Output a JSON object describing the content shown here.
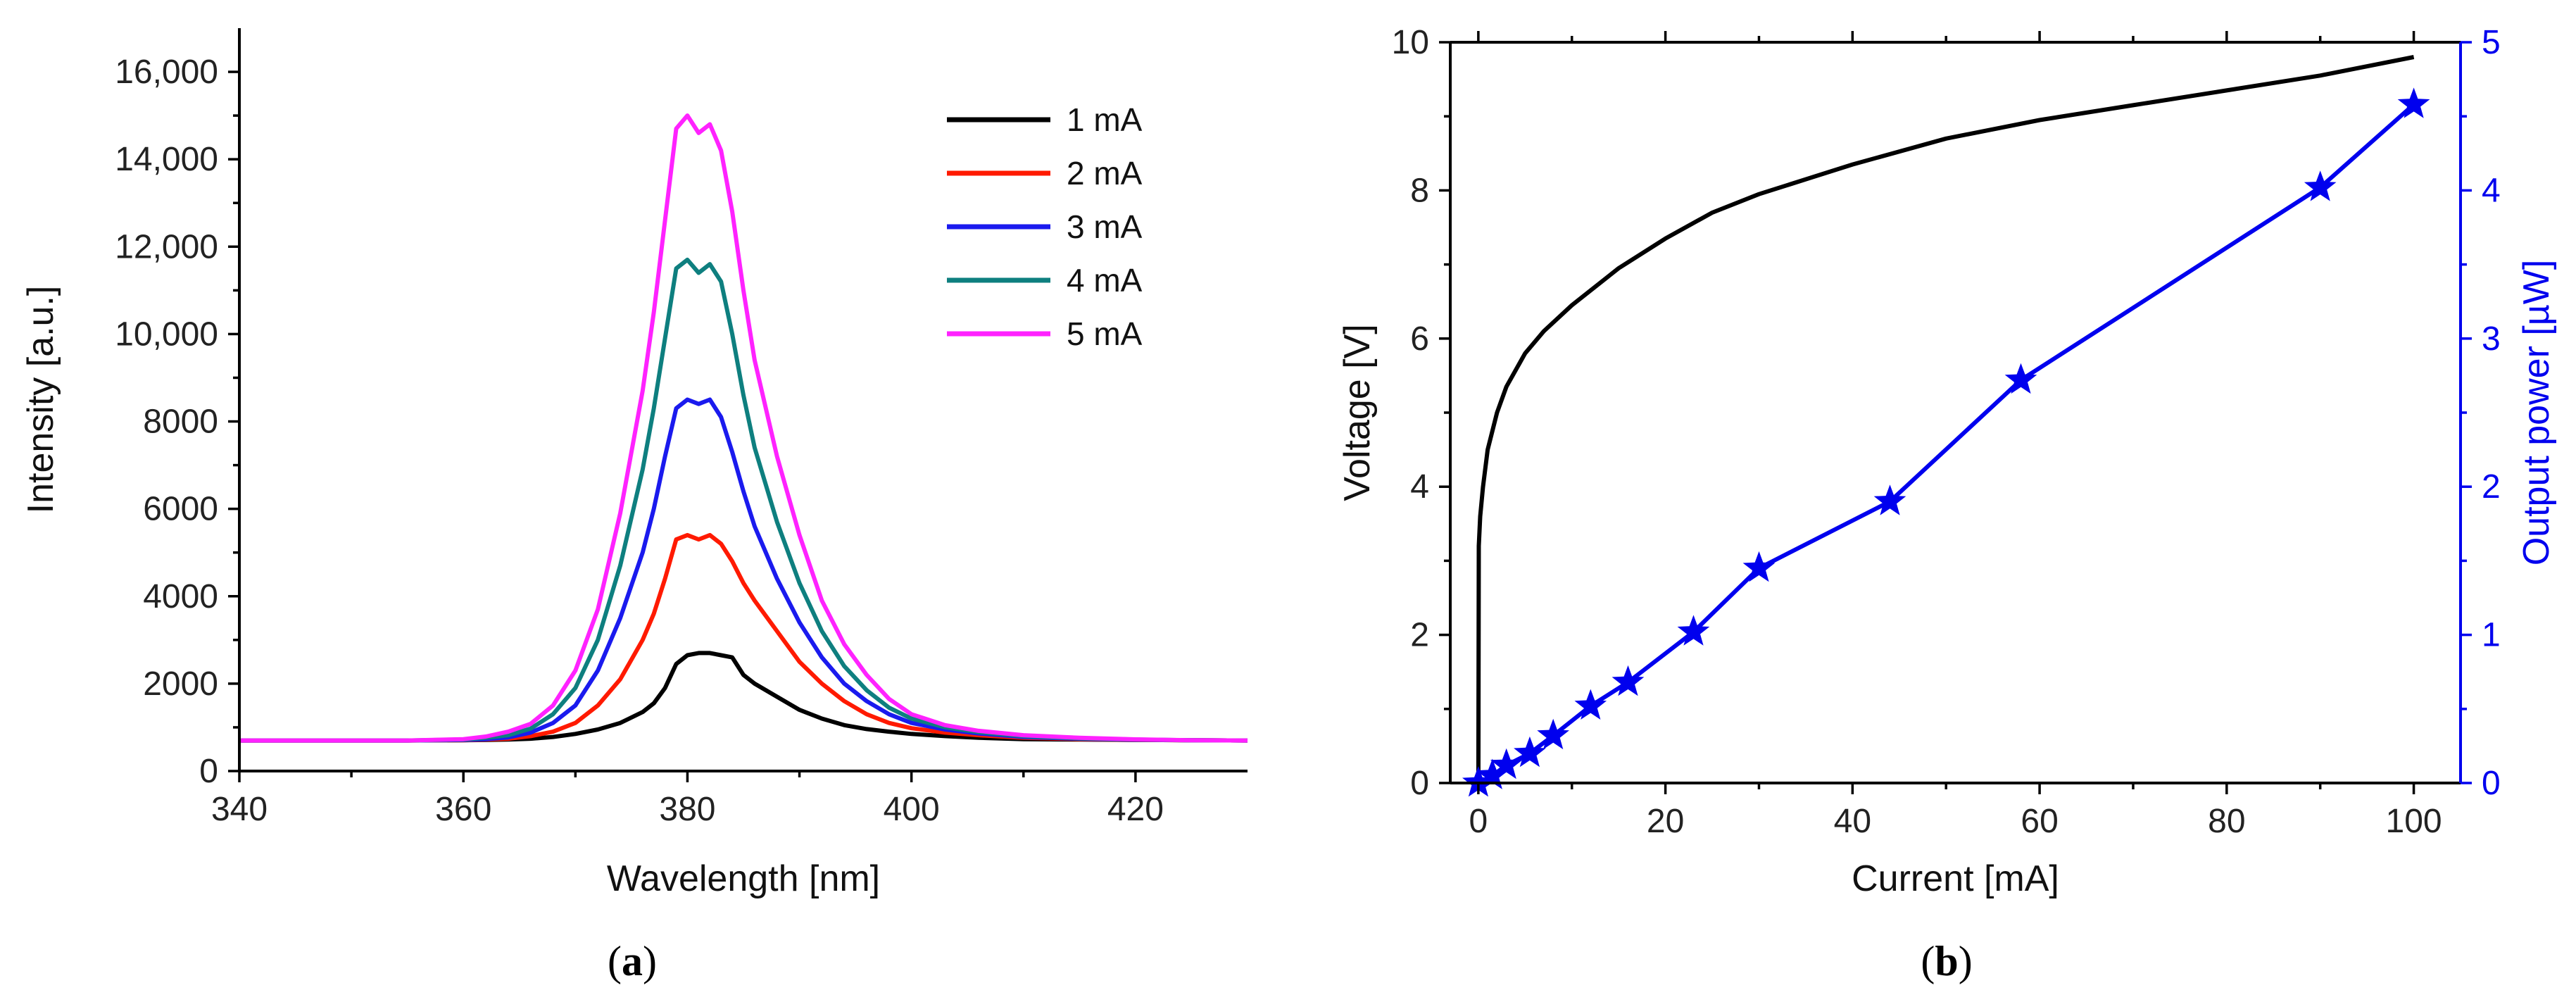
{
  "panels": {
    "a": {
      "label_open": "(",
      "label_letter": "a",
      "label_close": ")"
    },
    "b": {
      "label_open": "(",
      "label_letter": "b",
      "label_close": ")"
    }
  },
  "colors": {
    "axis": "#000000",
    "blue_axis": "#0000ee",
    "series": [
      "#000000",
      "#ff1a00",
      "#1a1aee",
      "#0e7f7f",
      "#ff22ff"
    ],
    "voltage": "#000000",
    "power": "#0000ee"
  },
  "chart_data": [
    {
      "type": "line",
      "panel": "a",
      "title": "",
      "xlabel": "Wavelength [nm]",
      "ylabel": "Intensity [a.u.]",
      "xlim": [
        340,
        430
      ],
      "ylim": [
        0,
        17000
      ],
      "xticks": [
        340,
        360,
        380,
        400,
        420
      ],
      "xtick_labels": [
        "340",
        "360",
        "380",
        "400",
        "420"
      ],
      "yticks": [
        0,
        2000,
        4000,
        6000,
        8000,
        10000,
        12000,
        14000,
        16000
      ],
      "ytick_labels": [
        "0",
        "2000",
        "4000",
        "6000",
        "8000",
        "10,000",
        "12,000",
        "14,000",
        "16,000"
      ],
      "legend_position": "top-right",
      "x": [
        340,
        350,
        355,
        360,
        362,
        364,
        366,
        368,
        370,
        372,
        374,
        376,
        377,
        378,
        379,
        380,
        381,
        382,
        383,
        384,
        385,
        386,
        388,
        390,
        392,
        394,
        396,
        398,
        400,
        403,
        406,
        410,
        415,
        420,
        425,
        430
      ],
      "series": [
        {
          "name": "1 mA",
          "values": [
            700,
            700,
            700,
            705,
            710,
            720,
            740,
            780,
            850,
            950,
            1100,
            1350,
            1550,
            1900,
            2450,
            2650,
            2700,
            2700,
            2650,
            2600,
            2200,
            2000,
            1700,
            1400,
            1200,
            1050,
            960,
            900,
            850,
            800,
            760,
            730,
            720,
            710,
            705,
            700
          ]
        },
        {
          "name": "2 mA",
          "values": [
            700,
            700,
            700,
            705,
            720,
            740,
            800,
            900,
            1100,
            1500,
            2100,
            3000,
            3600,
            4400,
            5300,
            5400,
            5300,
            5400,
            5200,
            4800,
            4300,
            3900,
            3200,
            2500,
            2000,
            1600,
            1300,
            1100,
            980,
            880,
            820,
            760,
            730,
            710,
            705,
            700
          ]
        },
        {
          "name": "3 mA",
          "values": [
            700,
            700,
            700,
            710,
            730,
            770,
            880,
            1100,
            1500,
            2300,
            3500,
            5000,
            6000,
            7200,
            8300,
            8500,
            8400,
            8500,
            8100,
            7300,
            6400,
            5600,
            4400,
            3400,
            2600,
            2000,
            1600,
            1300,
            1100,
            950,
            860,
            780,
            740,
            715,
            705,
            700
          ]
        },
        {
          "name": "4 mA",
          "values": [
            700,
            700,
            700,
            720,
            760,
            820,
            970,
            1300,
            1900,
            3000,
            4700,
            6900,
            8300,
            9900,
            11500,
            11700,
            11400,
            11600,
            11200,
            10000,
            8600,
            7400,
            5700,
            4300,
            3200,
            2400,
            1850,
            1450,
            1200,
            1000,
            890,
            800,
            750,
            720,
            705,
            700
          ]
        },
        {
          "name": "5 mA",
          "values": [
            700,
            700,
            700,
            730,
            790,
            900,
            1080,
            1500,
            2300,
            3700,
            5900,
            8700,
            10500,
            12600,
            14700,
            15000,
            14600,
            14800,
            14200,
            12800,
            11000,
            9400,
            7200,
            5400,
            3900,
            2900,
            2200,
            1650,
            1300,
            1050,
            920,
            820,
            760,
            725,
            705,
            700
          ]
        }
      ]
    },
    {
      "type": "line",
      "panel": "b",
      "title": "",
      "xlabel": "Current [mA]",
      "ylabel": "Voltage [V]",
      "y2label": "Output power [µW]",
      "xlim": [
        -3,
        105
      ],
      "ylim": [
        0,
        10
      ],
      "y2lim": [
        0,
        5
      ],
      "xticks": [
        0,
        20,
        40,
        60,
        80,
        100
      ],
      "xtick_labels": [
        "0",
        "20",
        "40",
        "60",
        "80",
        "100"
      ],
      "yticks": [
        0,
        2,
        4,
        6,
        8,
        10
      ],
      "ytick_labels": [
        "0",
        "2",
        "4",
        "6",
        "8",
        "10"
      ],
      "y2ticks": [
        0,
        1,
        2,
        3,
        4,
        5
      ],
      "y2tick_labels": [
        "0",
        "1",
        "2",
        "3",
        "4",
        "5"
      ],
      "series": [
        {
          "name": "Voltage",
          "axis": "left",
          "marker": "none",
          "x": [
            0,
            0.05,
            0.2,
            0.5,
            1,
            2,
            3,
            5,
            7,
            10,
            15,
            20,
            25,
            30,
            40,
            50,
            60,
            70,
            80,
            90,
            100
          ],
          "values": [
            0,
            3.2,
            3.6,
            4.0,
            4.5,
            5.0,
            5.35,
            5.8,
            6.1,
            6.45,
            6.95,
            7.35,
            7.7,
            7.95,
            8.35,
            8.7,
            8.95,
            9.15,
            9.35,
            9.55,
            9.8
          ]
        },
        {
          "name": "Output power",
          "axis": "right",
          "marker": "star",
          "x": [
            0,
            1.5,
            3,
            5.5,
            8,
            12,
            16,
            23,
            30,
            44,
            58,
            90,
            100
          ],
          "values": [
            0,
            0.05,
            0.12,
            0.2,
            0.32,
            0.52,
            0.68,
            1.02,
            1.45,
            1.9,
            2.72,
            4.02,
            4.58
          ]
        }
      ]
    }
  ]
}
